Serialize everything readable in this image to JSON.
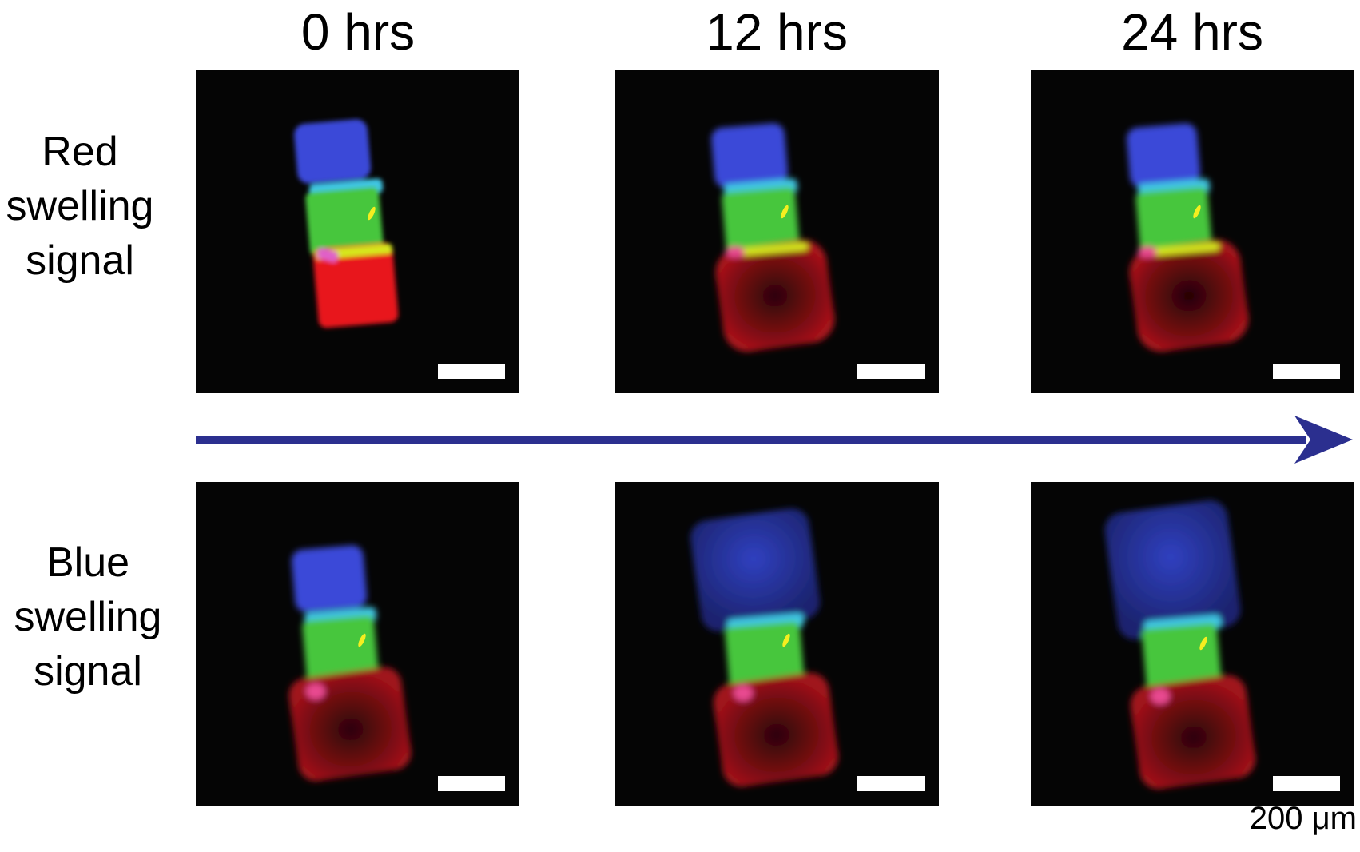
{
  "columns": [
    "0 hrs",
    "12 hrs",
    "24 hrs"
  ],
  "rows": [
    "Red\nswelling\nsignal",
    "Blue\nswelling\nsignal"
  ],
  "scale_bar": "200 μm",
  "colors": {
    "arrow": "#2b2f8f",
    "blue": "#3a4ad8",
    "green": "#3fc43c",
    "red": "#e0141e",
    "panel": "#050505"
  }
}
